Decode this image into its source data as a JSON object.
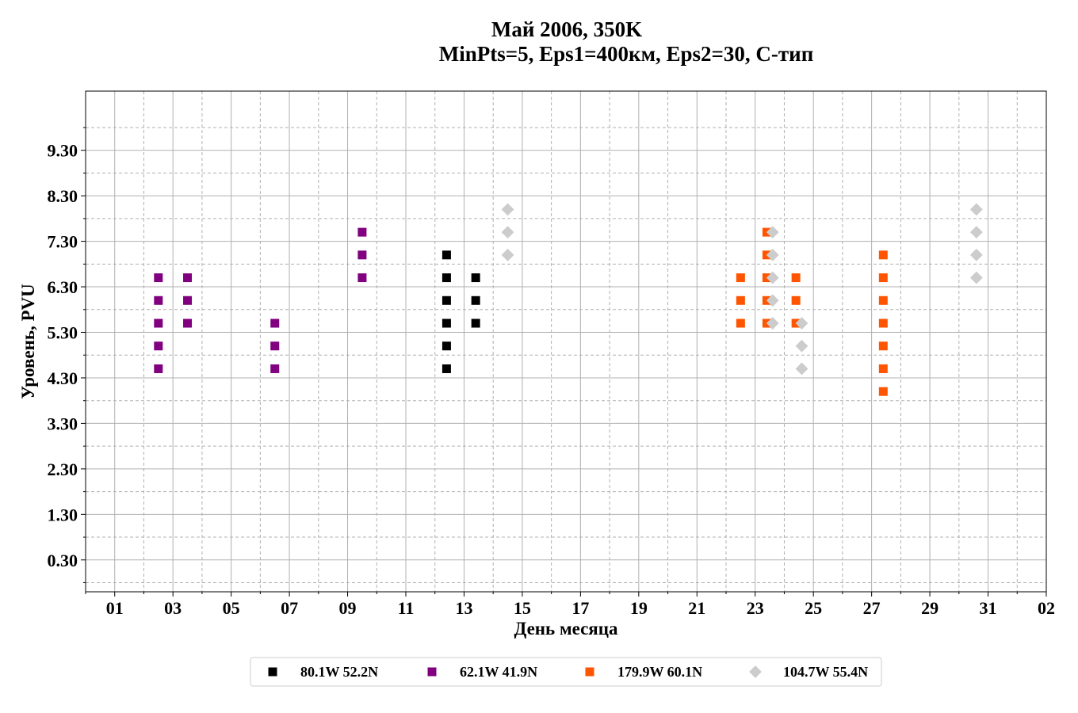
{
  "chart_data": {
    "type": "scatter",
    "title": "Май 2006, 350K",
    "subtitle": "MinPts=5, Eps1=400км, Eps2=30, С-тип",
    "xlabel": "День месяца",
    "ylabel": "Уровень, PVU",
    "xlim": [
      0,
      33
    ],
    "ylim": [
      -0.4,
      10.6
    ],
    "x_major_ticks": [
      1,
      3,
      5,
      7,
      9,
      11,
      13,
      15,
      17,
      19,
      21,
      23,
      25,
      27,
      29,
      31,
      33
    ],
    "x_tick_labels": [
      "01",
      "03",
      "05",
      "07",
      "09",
      "11",
      "13",
      "15",
      "17",
      "19",
      "21",
      "23",
      "25",
      "27",
      "29",
      "31",
      "02"
    ],
    "y_major_ticks": [
      0.3,
      1.3,
      2.3,
      3.3,
      4.3,
      5.3,
      6.3,
      7.3,
      8.3,
      9.3
    ],
    "y_tick_labels": [
      "0.30",
      "1.30",
      "2.30",
      "3.30",
      "4.30",
      "5.30",
      "6.30",
      "7.30",
      "8.30",
      "9.30"
    ],
    "grid": true,
    "legend_position": "bottom-center",
    "series": [
      {
        "name": "80.1W 52.2N",
        "marker": "square",
        "color": "#000000",
        "points": [
          [
            12.4,
            4.5
          ],
          [
            12.4,
            5.0
          ],
          [
            12.4,
            5.5
          ],
          [
            12.4,
            6.0
          ],
          [
            12.4,
            6.5
          ],
          [
            12.4,
            7.0
          ],
          [
            13.4,
            5.5
          ],
          [
            13.4,
            6.0
          ],
          [
            13.4,
            6.5
          ]
        ]
      },
      {
        "name": "62.1W 41.9N",
        "marker": "square",
        "color": "#800080",
        "points": [
          [
            2.5,
            4.5
          ],
          [
            2.5,
            5.0
          ],
          [
            2.5,
            5.5
          ],
          [
            2.5,
            6.0
          ],
          [
            2.5,
            6.5
          ],
          [
            3.5,
            5.5
          ],
          [
            3.5,
            6.0
          ],
          [
            3.5,
            6.5
          ],
          [
            6.5,
            4.5
          ],
          [
            6.5,
            5.0
          ],
          [
            6.5,
            5.5
          ],
          [
            9.5,
            6.5
          ],
          [
            9.5,
            7.0
          ],
          [
            9.5,
            7.5
          ]
        ]
      },
      {
        "name": "179.9W 60.1N",
        "marker": "square",
        "color": "#ff5500",
        "points": [
          [
            22.5,
            5.5
          ],
          [
            22.5,
            6.0
          ],
          [
            22.5,
            6.5
          ],
          [
            23.4,
            5.5
          ],
          [
            23.4,
            6.0
          ],
          [
            23.4,
            6.5
          ],
          [
            23.4,
            7.0
          ],
          [
            23.4,
            7.5
          ],
          [
            24.4,
            5.5
          ],
          [
            24.4,
            6.0
          ],
          [
            24.4,
            6.5
          ],
          [
            27.4,
            4.0
          ],
          [
            27.4,
            4.5
          ],
          [
            27.4,
            5.0
          ],
          [
            27.4,
            5.5
          ],
          [
            27.4,
            6.0
          ],
          [
            27.4,
            6.5
          ],
          [
            27.4,
            7.0
          ]
        ]
      },
      {
        "name": "104.7W 55.4N",
        "marker": "diamond",
        "color": "#cccccc",
        "points": [
          [
            14.5,
            7.0
          ],
          [
            14.5,
            7.5
          ],
          [
            14.5,
            8.0
          ],
          [
            23.6,
            5.5
          ],
          [
            23.6,
            6.0
          ],
          [
            23.6,
            6.5
          ],
          [
            23.6,
            7.0
          ],
          [
            23.6,
            7.5
          ],
          [
            24.6,
            4.5
          ],
          [
            24.6,
            5.0
          ],
          [
            24.6,
            5.5
          ],
          [
            30.6,
            6.5
          ],
          [
            30.6,
            7.0
          ],
          [
            30.6,
            7.5
          ],
          [
            30.6,
            8.0
          ]
        ]
      }
    ]
  }
}
